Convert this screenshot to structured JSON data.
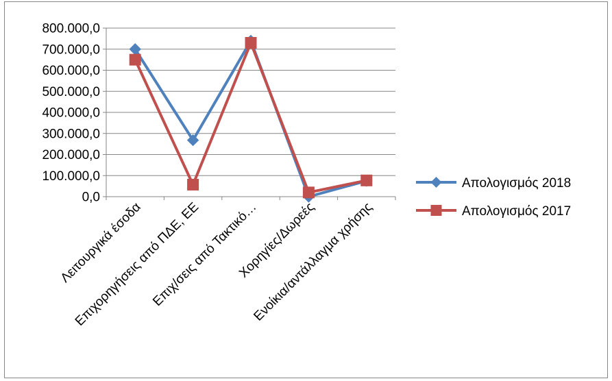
{
  "chart_data": {
    "type": "line",
    "title": "",
    "xlabel": "",
    "ylabel": "",
    "categories": [
      "Λειτουργικά έσοδα",
      "Επιχορηγήσεις από ΠΔΕ, ΕΕ",
      "Επιχ/σεις από Τακτικό…",
      "Χορηγίες/Δωρεές",
      "Ενοίκια/αντάλλαγμα χρήσης"
    ],
    "ylim": [
      0,
      800000
    ],
    "y_ticks": [
      "0,0",
      "100.000,0",
      "200.000,0",
      "300.000,0",
      "400.000,0",
      "500.000,0",
      "600.000,0",
      "700.000,0",
      "800.000,0"
    ],
    "grid": true,
    "legend_position": "right",
    "series": [
      {
        "name": "Απολογισμός 2018",
        "color": "#4F81BD",
        "marker": "diamond",
        "values": [
          700000,
          268000,
          740000,
          0,
          75000
        ]
      },
      {
        "name": "Απολογισμός 2017",
        "color": "#C0504D",
        "marker": "square",
        "values": [
          650000,
          57000,
          730000,
          20000,
          77000
        ]
      }
    ]
  }
}
